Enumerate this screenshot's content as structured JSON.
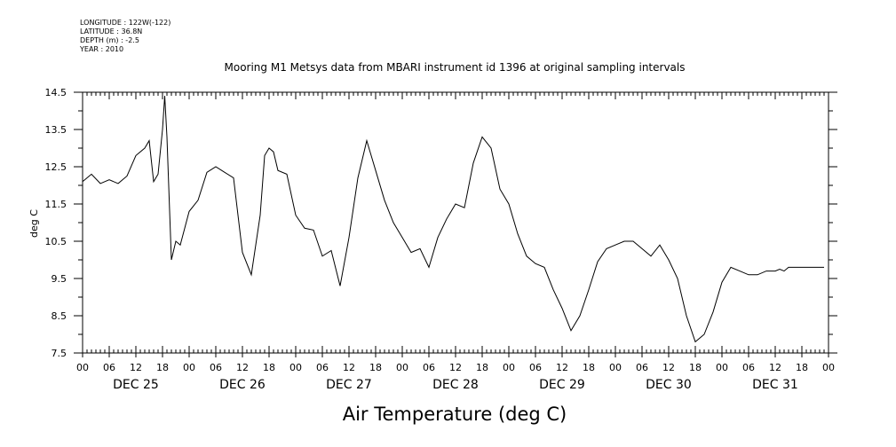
{
  "header": {
    "longitude": "LONGITUDE : 122W(-122)",
    "latitude": "LATITUDE : 36.8N",
    "depth": "DEPTH (m) : -2.5",
    "year": "YEAR : 2010"
  },
  "chart_data": {
    "type": "line",
    "title": "Mooring M1 Metsys data from MBARI instrument id 1396 at original sampling intervals",
    "xlabel": "Air Temperature (deg C)",
    "ylabel": "deg C",
    "ylim": [
      7.5,
      14.5
    ],
    "yticks": [
      "7.5",
      "8.5",
      "9.5",
      "10.5",
      "11.5",
      "12.5",
      "13.5",
      "14.5"
    ],
    "x_unit": "hours from DEC 25 00:00",
    "xlim": [
      0,
      168
    ],
    "x_hour_ticks": [
      "00",
      "06",
      "12",
      "18",
      "00",
      "06",
      "12",
      "18",
      "00",
      "06",
      "12",
      "18",
      "00",
      "06",
      "12",
      "18",
      "00",
      "06",
      "12",
      "18",
      "00",
      "06",
      "12",
      "18",
      "00",
      "06",
      "12",
      "18",
      "00"
    ],
    "day_labels": [
      "DEC 25",
      "DEC 26",
      "DEC 27",
      "DEC 28",
      "DEC 29",
      "DEC 30",
      "DEC 31"
    ],
    "grid": false,
    "series": [
      {
        "x": [
          0,
          2,
          4,
          6,
          8,
          10,
          12,
          14,
          15,
          16,
          17,
          18,
          18.5,
          19,
          20,
          21,
          22,
          24,
          26,
          28,
          30,
          32,
          34,
          36,
          38,
          40,
          41,
          42,
          43,
          44,
          46,
          48,
          50,
          52,
          54,
          56,
          58,
          60,
          62,
          64,
          65,
          66,
          68,
          70,
          72,
          74,
          76,
          78,
          80,
          82,
          84,
          86,
          88,
          90,
          92,
          94,
          96,
          98,
          100,
          102,
          104,
          106,
          108,
          110,
          112,
          114,
          116,
          118,
          120,
          122,
          124,
          126,
          128,
          130,
          132,
          134,
          136,
          138,
          140,
          142,
          144,
          146,
          148,
          150,
          152,
          154,
          156,
          157,
          158,
          159,
          160,
          162,
          164,
          166,
          167
        ],
        "values": [
          12.1,
          12.3,
          12.05,
          12.15,
          12.05,
          12.25,
          12.8,
          13.0,
          13.2,
          12.1,
          12.3,
          13.5,
          14.4,
          13.3,
          10.0,
          10.5,
          10.4,
          11.3,
          11.6,
          12.35,
          12.5,
          12.35,
          12.2,
          10.2,
          9.6,
          11.2,
          12.8,
          13.0,
          12.9,
          12.4,
          12.3,
          11.2,
          10.85,
          10.8,
          10.1,
          10.25,
          9.3,
          10.6,
          12.2,
          13.2,
          12.8,
          12.4,
          11.6,
          11.0,
          10.6,
          10.2,
          10.3,
          9.8,
          10.6,
          11.1,
          11.5,
          11.4,
          12.6,
          13.3,
          13.0,
          11.9,
          11.5,
          10.7,
          10.1,
          9.9,
          9.8,
          9.2,
          8.7,
          8.1,
          8.5,
          9.2,
          9.95,
          10.3,
          10.4,
          10.5,
          10.5,
          10.3,
          10.1,
          10.4,
          10.0,
          9.5,
          8.5,
          7.8,
          8.0,
          8.6,
          9.4,
          9.8,
          9.7,
          9.6,
          9.6,
          9.7,
          9.7,
          9.75,
          9.7,
          9.8,
          9.8,
          9.8,
          9.8,
          9.8,
          9.8
        ]
      }
    ]
  }
}
